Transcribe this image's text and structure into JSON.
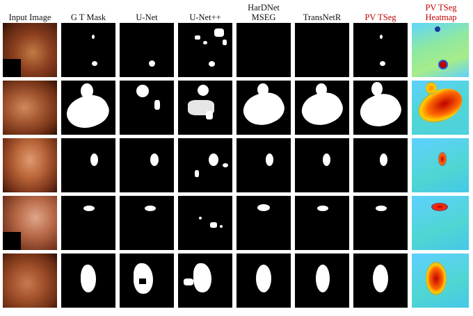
{
  "columns": [
    {
      "label": "Input Image",
      "color": "#111111"
    },
    {
      "label": "G T Mask",
      "color": "#111111"
    },
    {
      "label": "U-Net",
      "color": "#111111"
    },
    {
      "label": "U-Net++",
      "color": "#111111"
    },
    {
      "label": "HarDNet MSEG",
      "color": "#111111"
    },
    {
      "label": "TransNetR",
      "color": "#111111"
    },
    {
      "label": "PV TSeg",
      "color": "#c00000"
    },
    {
      "label": "PV TSeg Heatmap",
      "color": "#c00000"
    }
  ],
  "colors": {
    "mask_background": "#000000",
    "mask_foreground": "#ffffff",
    "heatmap_low": "#3fb8ff",
    "heatmap_mid": "#ffd000",
    "heatmap_high": "#c00000",
    "endoscopy_tone": "#8a3e1e"
  }
}
